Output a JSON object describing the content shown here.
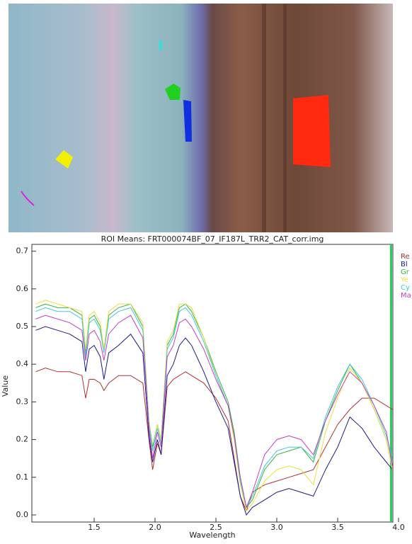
{
  "chart_data": {
    "type": "line",
    "title": "ROI Means: FRT000074BF_07_IF187L_TRR2_CAT_corr.img",
    "x_label": "Wavelength",
    "y_label": "Value",
    "x": [
      1.02,
      1.1,
      1.2,
      1.3,
      1.4,
      1.43,
      1.46,
      1.5,
      1.55,
      1.58,
      1.62,
      1.7,
      1.8,
      1.9,
      1.95,
      1.98,
      2.02,
      2.05,
      2.1,
      2.15,
      2.2,
      2.25,
      2.3,
      2.4,
      2.5,
      2.6,
      2.65,
      2.7,
      2.75,
      2.8,
      2.9,
      3.0,
      3.1,
      3.2,
      3.3,
      3.4,
      3.5,
      3.6,
      3.7,
      3.8,
      3.9,
      3.95
    ],
    "series": [
      {
        "name": "Re",
        "color": "#b03030",
        "values": [
          0.38,
          0.39,
          0.38,
          0.38,
          0.37,
          0.31,
          0.36,
          0.36,
          0.35,
          0.33,
          0.35,
          0.37,
          0.37,
          0.35,
          0.2,
          0.12,
          0.19,
          0.16,
          0.34,
          0.36,
          0.37,
          0.38,
          0.37,
          0.35,
          0.31,
          0.25,
          0.15,
          0.05,
          0.01,
          0.06,
          0.08,
          0.09,
          0.1,
          0.11,
          0.12,
          0.18,
          0.24,
          0.28,
          0.31,
          0.31,
          0.29,
          0.28
        ]
      },
      {
        "name": "Bl",
        "color": "#1a1a8c",
        "values": [
          0.49,
          0.5,
          0.49,
          0.48,
          0.46,
          0.38,
          0.44,
          0.45,
          0.42,
          0.36,
          0.43,
          0.45,
          0.48,
          0.43,
          0.21,
          0.14,
          0.2,
          0.16,
          0.37,
          0.4,
          0.45,
          0.47,
          0.45,
          0.38,
          0.3,
          0.23,
          0.14,
          0.05,
          0.0,
          0.02,
          0.04,
          0.06,
          0.07,
          0.06,
          0.05,
          0.12,
          0.18,
          0.26,
          0.23,
          0.18,
          0.14,
          0.12
        ]
      },
      {
        "name": "Gr",
        "color": "#3cb043",
        "values": [
          0.55,
          0.56,
          0.55,
          0.55,
          0.53,
          0.43,
          0.52,
          0.53,
          0.5,
          0.44,
          0.53,
          0.55,
          0.56,
          0.5,
          0.25,
          0.18,
          0.24,
          0.2,
          0.45,
          0.48,
          0.55,
          0.56,
          0.54,
          0.47,
          0.38,
          0.3,
          0.22,
          0.1,
          0.02,
          0.04,
          0.12,
          0.16,
          0.17,
          0.18,
          0.14,
          0.25,
          0.33,
          0.4,
          0.35,
          0.28,
          0.2,
          0.12
        ]
      },
      {
        "name": "Ye",
        "color": "#e8e040",
        "values": [
          0.56,
          0.57,
          0.56,
          0.55,
          0.54,
          0.44,
          0.53,
          0.54,
          0.51,
          0.44,
          0.54,
          0.56,
          0.56,
          0.51,
          0.25,
          0.17,
          0.24,
          0.2,
          0.46,
          0.49,
          0.56,
          0.56,
          0.55,
          0.47,
          0.37,
          0.29,
          0.2,
          0.08,
          0.01,
          0.03,
          0.09,
          0.12,
          0.13,
          0.12,
          0.08,
          0.22,
          0.31,
          0.39,
          0.35,
          0.28,
          0.2,
          0.12
        ]
      },
      {
        "name": "Cy",
        "color": "#40c8d8",
        "values": [
          0.54,
          0.55,
          0.54,
          0.54,
          0.52,
          0.42,
          0.51,
          0.52,
          0.49,
          0.43,
          0.52,
          0.54,
          0.55,
          0.49,
          0.24,
          0.17,
          0.23,
          0.19,
          0.44,
          0.47,
          0.54,
          0.55,
          0.53,
          0.46,
          0.37,
          0.29,
          0.21,
          0.09,
          0.02,
          0.05,
          0.13,
          0.17,
          0.18,
          0.18,
          0.15,
          0.26,
          0.34,
          0.4,
          0.36,
          0.29,
          0.21,
          0.15
        ]
      },
      {
        "name": "Ma",
        "color": "#c040c0",
        "values": [
          0.52,
          0.53,
          0.52,
          0.51,
          0.49,
          0.41,
          0.48,
          0.49,
          0.46,
          0.41,
          0.48,
          0.51,
          0.53,
          0.47,
          0.23,
          0.15,
          0.22,
          0.18,
          0.42,
          0.45,
          0.51,
          0.52,
          0.5,
          0.44,
          0.36,
          0.29,
          0.21,
          0.1,
          0.02,
          0.06,
          0.16,
          0.2,
          0.21,
          0.2,
          0.16,
          0.25,
          0.32,
          0.38,
          0.35,
          0.29,
          0.22,
          0.13
        ]
      }
    ],
    "xlim": [
      1.0,
      4.0
    ],
    "xticks": [
      1.5,
      {
        "value": 2,
        "label": "2.0"
      },
      2.5,
      {
        "value": 3,
        "label": "3.0"
      },
      3.5,
      {
        "value": 4,
        "label": "4.0"
      }
    ],
    "ylim": [
      -0.02,
      0.72
    ],
    "yticks": [
      {
        "value": 0,
        "label": "0.0"
      },
      0.1,
      0.2,
      0.3,
      0.4,
      0.5,
      0.6,
      0.7
    ]
  }
}
